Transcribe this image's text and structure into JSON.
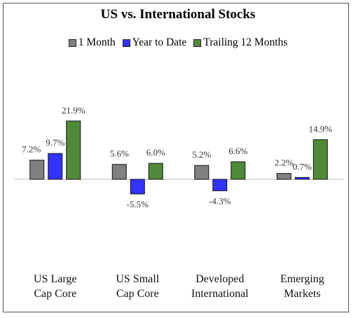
{
  "chart_data": {
    "type": "bar",
    "title": "US vs. International Stocks",
    "categories": [
      "US Large Cap Core",
      "US Small Cap Core",
      "Developed International",
      "Emerging Markets"
    ],
    "series": [
      {
        "name": "1 Month",
        "color": "#808080",
        "values": [
          7.2,
          5.6,
          5.2,
          2.2
        ],
        "value_labels": [
          "7.2%",
          "5.6%",
          "5.2%",
          "2.2%"
        ]
      },
      {
        "name": "Year to Date",
        "color": "#3333ff",
        "values": [
          9.7,
          -5.5,
          -4.3,
          0.7
        ],
        "value_labels": [
          "9.7%",
          "-5.5%",
          "-4.3%",
          "0.7%"
        ]
      },
      {
        "name": "Trailing 12 Months",
        "color": "#4f8a38",
        "values": [
          21.9,
          6.0,
          6.6,
          14.9
        ],
        "value_labels": [
          "21.9%",
          "6.0%",
          "6.6%",
          "14.9%"
        ]
      }
    ],
    "ylim": [
      -30,
      45
    ],
    "legend": "top"
  }
}
